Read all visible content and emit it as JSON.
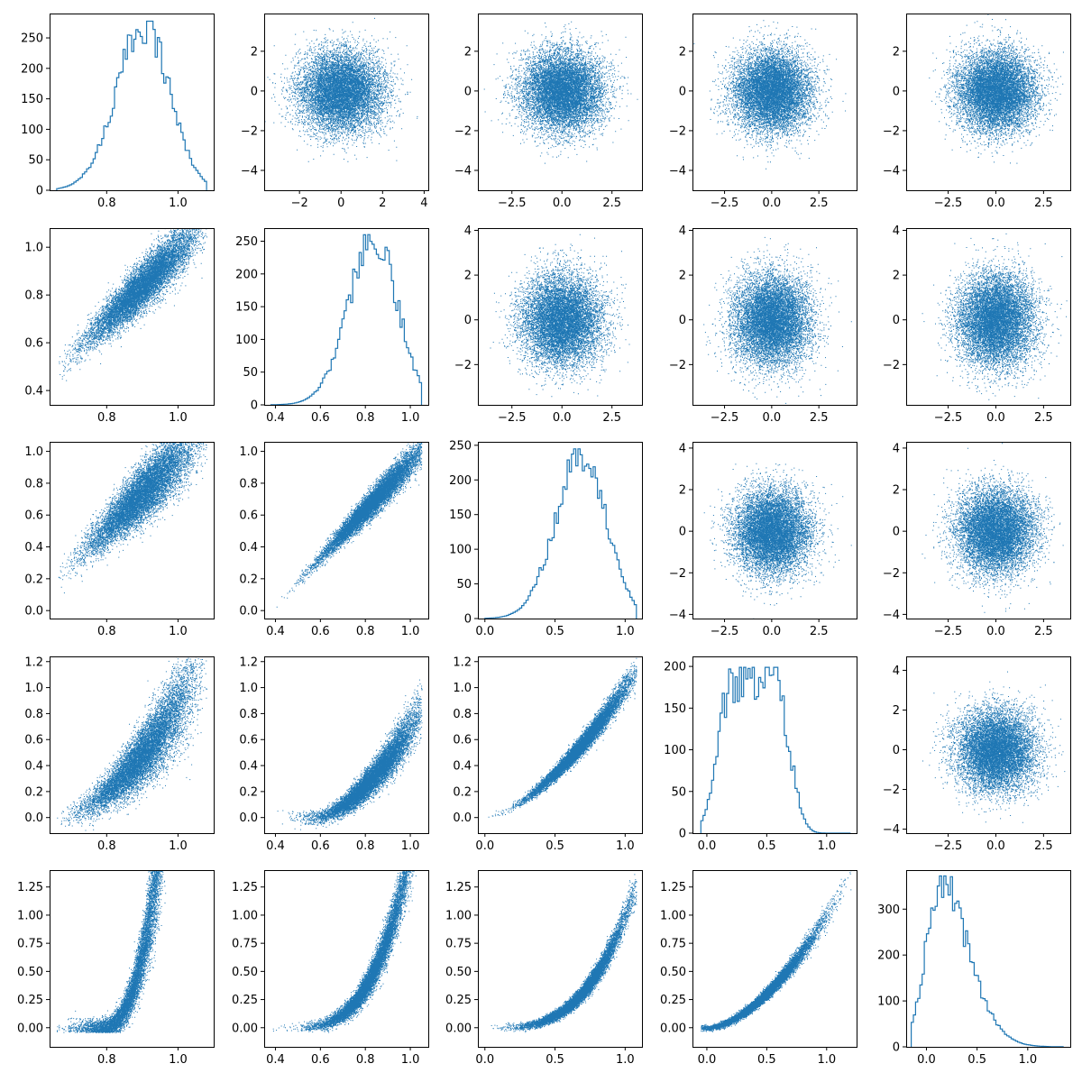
{
  "figure": {
    "background": "#ffffff",
    "accent": "#1f77b4"
  },
  "chart_data": [
    {
      "type": "histogram",
      "row": 0,
      "col": 0,
      "xlim": [
        0.64,
        1.1
      ],
      "ylim": [
        0,
        290
      ],
      "xticks": [
        0.8,
        1.0
      ],
      "xtick_labels": [
        "0.8",
        "1.0"
      ],
      "yticks": [
        0,
        50,
        100,
        150,
        200,
        250
      ],
      "ytick_labels": [
        "0",
        "50",
        "100",
        "150",
        "200",
        "250"
      ],
      "bin_range": [
        0.66,
        1.08
      ],
      "bin_count": 70,
      "mean": 0.9,
      "sd": 0.075,
      "skew": -0.9,
      "peak": 272,
      "jitter": 0.12,
      "color": "#1f77b4"
    },
    {
      "type": "scatter",
      "row": 0,
      "col": 1,
      "xlim": [
        -3.7,
        4.2
      ],
      "ylim": [
        -5.0,
        3.9
      ],
      "xticks": [
        -2,
        0,
        2,
        4
      ],
      "xtick_labels": [
        "−2",
        "0",
        "2",
        "4"
      ],
      "yticks": [
        -4,
        -2,
        0,
        2
      ],
      "ytick_labels": [
        "−4",
        "−2",
        "0",
        "2"
      ],
      "n": 10000,
      "x_mean": 0,
      "x_sd": 1,
      "rel": "normal",
      "color": "#1f77b4"
    },
    {
      "type": "scatter",
      "row": 0,
      "col": 2,
      "xlim": [
        -4.2,
        4.0
      ],
      "ylim": [
        -5.0,
        3.9
      ],
      "xticks": [
        -2.5,
        0.0,
        2.5
      ],
      "xtick_labels": [
        "−2.5",
        "0.0",
        "2.5"
      ],
      "yticks": [
        -4,
        -2,
        0,
        2
      ],
      "ytick_labels": [
        "−4",
        "−2",
        "0",
        "2"
      ],
      "n": 10000,
      "x_mean": 0,
      "x_sd": 1,
      "rel": "normal",
      "color": "#1f77b4"
    },
    {
      "type": "scatter",
      "row": 0,
      "col": 3,
      "xlim": [
        -4.2,
        4.5
      ],
      "ylim": [
        -5.0,
        3.9
      ],
      "xticks": [
        -2.5,
        0.0,
        2.5
      ],
      "xtick_labels": [
        "−2.5",
        "0.0",
        "2.5"
      ],
      "yticks": [
        -4,
        -2,
        0,
        2
      ],
      "ytick_labels": [
        "−4",
        "−2",
        "0",
        "2"
      ],
      "n": 10000,
      "x_mean": 0,
      "x_sd": 1,
      "rel": "normal",
      "color": "#1f77b4"
    },
    {
      "type": "scatter",
      "row": 0,
      "col": 4,
      "xlim": [
        -4.7,
        3.9
      ],
      "ylim": [
        -5.0,
        3.9
      ],
      "xticks": [
        -2.5,
        0.0,
        2.5
      ],
      "xtick_labels": [
        "−2.5",
        "0.0",
        "2.5"
      ],
      "yticks": [
        -4,
        -2,
        0,
        2
      ],
      "ytick_labels": [
        "−4",
        "−2",
        "0",
        "2"
      ],
      "n": 10000,
      "x_mean": 0,
      "x_sd": 1,
      "rel": "normal",
      "color": "#1f77b4"
    },
    {
      "type": "scatter",
      "row": 1,
      "col": 0,
      "xlim": [
        0.64,
        1.1
      ],
      "ylim": [
        0.34,
        1.08
      ],
      "xticks": [
        0.8,
        1.0
      ],
      "xtick_labels": [
        "0.8",
        "1.0"
      ],
      "yticks": [
        0.4,
        0.6,
        0.8,
        1.0
      ],
      "ytick_labels": [
        "0.4",
        "0.6",
        "0.8",
        "1.0"
      ],
      "n": 10000,
      "x_mean": 0.9,
      "x_sd": 0.075,
      "x_skew": -0.9,
      "x_range": [
        0.66,
        1.08
      ],
      "rel": "curve",
      "y_slope": 1.45,
      "y_pivot": 0.9,
      "y_offset": 0.84,
      "y_power": 1,
      "y_noise": 0.035,
      "color": "#1f77b4"
    },
    {
      "type": "histogram",
      "row": 1,
      "col": 1,
      "xlim": [
        0.35,
        1.08
      ],
      "ylim": [
        0,
        270
      ],
      "xticks": [
        0.4,
        0.6,
        0.8,
        1.0
      ],
      "xtick_labels": [
        "0.4",
        "0.6",
        "0.8",
        "1.0"
      ],
      "yticks": [
        0,
        50,
        100,
        150,
        200,
        250
      ],
      "ytick_labels": [
        "0",
        "50",
        "100",
        "150",
        "200",
        "250"
      ],
      "bin_range": [
        0.38,
        1.05
      ],
      "bin_count": 70,
      "mean": 0.83,
      "sd": 0.11,
      "skew": -0.9,
      "peak": 255,
      "jitter": 0.12,
      "color": "#1f77b4"
    },
    {
      "type": "scatter",
      "row": 1,
      "col": 2,
      "xlim": [
        -4.2,
        4.0
      ],
      "ylim": [
        -3.8,
        4.1
      ],
      "xticks": [
        -2.5,
        0.0,
        2.5
      ],
      "xtick_labels": [
        "−2.5",
        "0.0",
        "2.5"
      ],
      "yticks": [
        -2,
        0,
        2,
        4
      ],
      "ytick_labels": [
        "−2",
        "0",
        "2",
        "4"
      ],
      "n": 10000,
      "x_mean": 0,
      "x_sd": 1,
      "rel": "normal",
      "color": "#1f77b4"
    },
    {
      "type": "scatter",
      "row": 1,
      "col": 3,
      "xlim": [
        -4.2,
        4.5
      ],
      "ylim": [
        -3.8,
        4.1
      ],
      "xticks": [
        -2.5,
        0.0,
        2.5
      ],
      "xtick_labels": [
        "−2.5",
        "0.0",
        "2.5"
      ],
      "yticks": [
        -2,
        0,
        2,
        4
      ],
      "ytick_labels": [
        "−2",
        "0",
        "2",
        "4"
      ],
      "n": 10000,
      "x_mean": 0,
      "x_sd": 1,
      "rel": "normal",
      "color": "#1f77b4"
    },
    {
      "type": "scatter",
      "row": 1,
      "col": 4,
      "xlim": [
        -4.7,
        3.9
      ],
      "ylim": [
        -3.8,
        4.1
      ],
      "xticks": [
        -2.5,
        0.0,
        2.5
      ],
      "xtick_labels": [
        "−2.5",
        "0.0",
        "2.5"
      ],
      "yticks": [
        -2,
        0,
        2,
        4
      ],
      "ytick_labels": [
        "−2",
        "0",
        "2",
        "4"
      ],
      "n": 10000,
      "x_mean": 0,
      "x_sd": 1,
      "rel": "normal",
      "color": "#1f77b4"
    },
    {
      "type": "scatter",
      "row": 2,
      "col": 0,
      "xlim": [
        0.64,
        1.1
      ],
      "ylim": [
        -0.05,
        1.06
      ],
      "xticks": [
        0.8,
        1.0
      ],
      "xtick_labels": [
        "0.8",
        "1.0"
      ],
      "yticks": [
        0.0,
        0.2,
        0.4,
        0.6,
        0.8,
        1.0
      ],
      "ytick_labels": [
        "0.0",
        "0.2",
        "0.4",
        "0.6",
        "0.8",
        "1.0"
      ],
      "n": 10000,
      "x_mean": 0.9,
      "x_sd": 0.075,
      "x_skew": -0.9,
      "x_range": [
        0.66,
        1.08
      ],
      "rel": "curve",
      "y_slope": 2.2,
      "y_pivot": 0.9,
      "y_offset": 0.74,
      "y_power": 1,
      "y_noise": 0.07,
      "color": "#1f77b4"
    },
    {
      "type": "scatter",
      "row": 2,
      "col": 1,
      "xlim": [
        0.35,
        1.08
      ],
      "ylim": [
        -0.05,
        1.06
      ],
      "xticks": [
        0.4,
        0.6,
        0.8,
        1.0
      ],
      "xtick_labels": [
        "0.4",
        "0.6",
        "0.8",
        "1.0"
      ],
      "yticks": [
        0.0,
        0.2,
        0.4,
        0.6,
        0.8,
        1.0
      ],
      "ytick_labels": [
        "0.0",
        "0.2",
        "0.4",
        "0.6",
        "0.8",
        "1.0"
      ],
      "n": 10000,
      "x_mean": 0.83,
      "x_sd": 0.11,
      "x_skew": -0.9,
      "x_range": [
        0.38,
        1.05
      ],
      "rel": "curve",
      "y_slope": 1.5,
      "y_pivot": 0.83,
      "y_offset": 0.68,
      "y_power": 1,
      "y_noise": 0.035,
      "color": "#1f77b4"
    },
    {
      "type": "histogram",
      "row": 2,
      "col": 2,
      "xlim": [
        -0.05,
        1.12
      ],
      "ylim": [
        0,
        255
      ],
      "xticks": [
        0.0,
        0.5,
        1.0
      ],
      "xtick_labels": [
        "0.0",
        "0.5",
        "1.0"
      ],
      "yticks": [
        0,
        50,
        100,
        150,
        200,
        250
      ],
      "ytick_labels": [
        "0",
        "50",
        "100",
        "150",
        "200",
        "250"
      ],
      "bin_range": [
        0.0,
        1.08
      ],
      "bin_count": 70,
      "mean": 0.68,
      "sd": 0.18,
      "skew": -0.8,
      "peak": 240,
      "jitter": 0.12,
      "color": "#1f77b4"
    },
    {
      "type": "scatter",
      "row": 2,
      "col": 3,
      "xlim": [
        -4.2,
        4.5
      ],
      "ylim": [
        -4.2,
        4.3
      ],
      "xticks": [
        -2.5,
        0.0,
        2.5
      ],
      "xtick_labels": [
        "−2.5",
        "0.0",
        "2.5"
      ],
      "yticks": [
        -4,
        -2,
        0,
        2,
        4
      ],
      "ytick_labels": [
        "−4",
        "−2",
        "0",
        "2",
        "4"
      ],
      "n": 10000,
      "x_mean": 0,
      "x_sd": 1,
      "rel": "normal",
      "color": "#1f77b4"
    },
    {
      "type": "scatter",
      "row": 2,
      "col": 4,
      "xlim": [
        -4.7,
        3.9
      ],
      "ylim": [
        -4.2,
        4.3
      ],
      "xticks": [
        -2.5,
        0.0,
        2.5
      ],
      "xtick_labels": [
        "−2.5",
        "0.0",
        "2.5"
      ],
      "yticks": [
        -4,
        -2,
        0,
        2,
        4
      ],
      "ytick_labels": [
        "−4",
        "−2",
        "0",
        "2",
        "4"
      ],
      "n": 10000,
      "x_mean": 0,
      "x_sd": 1,
      "rel": "normal",
      "color": "#1f77b4"
    },
    {
      "type": "scatter",
      "row": 3,
      "col": 0,
      "xlim": [
        0.64,
        1.1
      ],
      "ylim": [
        -0.12,
        1.24
      ],
      "xticks": [
        0.8,
        1.0
      ],
      "xtick_labels": [
        "0.8",
        "1.0"
      ],
      "yticks": [
        0.0,
        0.2,
        0.4,
        0.6,
        0.8,
        1.0,
        1.2
      ],
      "ytick_labels": [
        "0.0",
        "0.2",
        "0.4",
        "0.6",
        "0.8",
        "1.0",
        "1.2"
      ],
      "n": 10000,
      "x_mean": 0.9,
      "x_sd": 0.075,
      "x_skew": -0.9,
      "x_range": [
        0.66,
        1.08
      ],
      "rel": "curve",
      "y_slope": 2.6,
      "y_pivot": 0.9,
      "y_offset": 0.48,
      "y_power": 1.7,
      "y_noise": 0.12,
      "color": "#1f77b4"
    },
    {
      "type": "scatter",
      "row": 3,
      "col": 1,
      "xlim": [
        0.35,
        1.08
      ],
      "ylim": [
        -0.12,
        1.24
      ],
      "xticks": [
        0.4,
        0.6,
        0.8,
        1.0
      ],
      "xtick_labels": [
        "0.4",
        "0.6",
        "0.8",
        "1.0"
      ],
      "yticks": [
        0.0,
        0.2,
        0.4,
        0.6,
        0.8,
        1.0,
        1.2
      ],
      "ytick_labels": [
        "0.0",
        "0.2",
        "0.4",
        "0.6",
        "0.8",
        "1.0",
        "1.2"
      ],
      "n": 10000,
      "x_mean": 0.83,
      "x_sd": 0.11,
      "x_skew": -0.9,
      "x_range": [
        0.38,
        1.05
      ],
      "rel": "curve",
      "y_slope": 1.7,
      "y_pivot": 0.83,
      "y_offset": 0.46,
      "y_power": 1.6,
      "y_noise": 0.08,
      "color": "#1f77b4"
    },
    {
      "type": "scatter",
      "row": 3,
      "col": 2,
      "xlim": [
        -0.05,
        1.12
      ],
      "ylim": [
        -0.12,
        1.24
      ],
      "xticks": [
        0.0,
        0.5,
        1.0
      ],
      "xtick_labels": [
        "0.0",
        "0.5",
        "1.0"
      ],
      "yticks": [
        0.0,
        0.2,
        0.4,
        0.6,
        0.8,
        1.0,
        1.2
      ],
      "ytick_labels": [
        "0.0",
        "0.2",
        "0.4",
        "0.6",
        "0.8",
        "1.0",
        "1.2"
      ],
      "n": 10000,
      "x_mean": 0.68,
      "x_sd": 0.18,
      "x_skew": -0.8,
      "x_range": [
        0.02,
        1.08
      ],
      "rel": "curve",
      "y_slope": 1.0,
      "y_pivot": 0.0,
      "y_offset": 0.0,
      "y_power": 1.55,
      "y_noise": 0.035,
      "color": "#1f77b4"
    },
    {
      "type": "histogram",
      "row": 3,
      "col": 3,
      "xlim": [
        -0.12,
        1.25
      ],
      "ylim": [
        0,
        212
      ],
      "xticks": [
        0.0,
        0.5,
        1.0
      ],
      "xtick_labels": [
        "0.0",
        "0.5",
        "1.0"
      ],
      "yticks": [
        0,
        50,
        100,
        150,
        200
      ],
      "ytick_labels": [
        "0",
        "50",
        "100",
        "150",
        "200"
      ],
      "bin_range": [
        -0.05,
        1.2
      ],
      "bin_count": 70,
      "mean": 0.46,
      "sd": 0.24,
      "skew": 0.1,
      "peak": 195,
      "flat": true,
      "jitter": 0.18,
      "color": "#1f77b4"
    },
    {
      "type": "scatter",
      "row": 3,
      "col": 4,
      "xlim": [
        -4.7,
        3.9
      ],
      "ylim": [
        -4.2,
        4.7
      ],
      "xticks": [
        -2.5,
        0.0,
        2.5
      ],
      "xtick_labels": [
        "−2.5",
        "0.0",
        "2.5"
      ],
      "yticks": [
        -4,
        -2,
        0,
        2,
        4
      ],
      "ytick_labels": [
        "−4",
        "−2",
        "0",
        "2",
        "4"
      ],
      "n": 10000,
      "x_mean": 0,
      "x_sd": 1,
      "rel": "normal",
      "color": "#1f77b4"
    },
    {
      "type": "scatter",
      "row": 4,
      "col": 0,
      "xlim": [
        0.64,
        1.1
      ],
      "ylim": [
        -0.17,
        1.4
      ],
      "xticks": [
        0.8,
        1.0
      ],
      "xtick_labels": [
        "0.8",
        "1.0"
      ],
      "yticks": [
        0.0,
        0.25,
        0.5,
        0.75,
        1.0,
        1.25
      ],
      "ytick_labels": [
        "0.00",
        "0.25",
        "0.50",
        "0.75",
        "1.00",
        "1.25"
      ],
      "n": 10000,
      "x_mean": 0.9,
      "x_sd": 0.075,
      "x_skew": -0.9,
      "x_range": [
        0.66,
        1.08
      ],
      "rel": "curve",
      "y_slope": 3.2,
      "y_pivot": 0.78,
      "y_offset": 0.0,
      "y_power": 2.6,
      "y_noise": 0.12,
      "y_floor": 0.0,
      "color": "#1f77b4"
    },
    {
      "type": "scatter",
      "row": 4,
      "col": 1,
      "xlim": [
        0.35,
        1.08
      ],
      "ylim": [
        -0.17,
        1.4
      ],
      "xticks": [
        0.4,
        0.6,
        0.8,
        1.0
      ],
      "xtick_labels": [
        "0.4",
        "0.6",
        "0.8",
        "1.0"
      ],
      "yticks": [
        0.0,
        0.25,
        0.5,
        0.75,
        1.0,
        1.25
      ],
      "ytick_labels": [
        "0.00",
        "0.25",
        "0.50",
        "0.75",
        "1.00",
        "1.25"
      ],
      "n": 10000,
      "x_mean": 0.83,
      "x_sd": 0.11,
      "x_skew": -0.9,
      "x_range": [
        0.38,
        1.05
      ],
      "rel": "curve",
      "y_slope": 1.55,
      "y_pivot": 0.45,
      "y_offset": 0.0,
      "y_power": 3.2,
      "y_noise": 0.07,
      "y_floor": 0.0,
      "color": "#1f77b4"
    },
    {
      "type": "scatter",
      "row": 4,
      "col": 2,
      "xlim": [
        -0.05,
        1.12
      ],
      "ylim": [
        -0.17,
        1.4
      ],
      "xticks": [
        0.0,
        0.5,
        1.0
      ],
      "xtick_labels": [
        "0.0",
        "0.5",
        "1.0"
      ],
      "yticks": [
        0.0,
        0.25,
        0.5,
        0.75,
        1.0,
        1.25
      ],
      "ytick_labels": [
        "0.00",
        "0.25",
        "0.50",
        "0.75",
        "1.00",
        "1.25"
      ],
      "n": 10000,
      "x_mean": 0.68,
      "x_sd": 0.18,
      "x_skew": -0.8,
      "x_range": [
        0.02,
        1.08
      ],
      "rel": "curve",
      "y_slope": 1.0,
      "y_pivot": 0.0,
      "y_offset": 0.0,
      "y_power": 3.2,
      "y_noise": 0.045,
      "color": "#1f77b4"
    },
    {
      "type": "scatter",
      "row": 4,
      "col": 3,
      "xlim": [
        -0.12,
        1.25
      ],
      "ylim": [
        -0.17,
        1.4
      ],
      "xticks": [
        0.0,
        0.5,
        1.0
      ],
      "xtick_labels": [
        "0.0",
        "0.5",
        "1.0"
      ],
      "yticks": [
        0.0,
        0.25,
        0.5,
        0.75,
        1.0,
        1.25
      ],
      "ytick_labels": [
        "0.00",
        "0.25",
        "0.50",
        "0.75",
        "1.00",
        "1.25"
      ],
      "n": 10000,
      "x_mean": 0.46,
      "x_sd": 0.24,
      "x_skew": 0.1,
      "x_range": [
        -0.05,
        1.2
      ],
      "rel": "curve",
      "y_slope": 1.0,
      "y_pivot": 0.0,
      "y_offset": 0.0,
      "y_power": 1.7,
      "y_noise": 0.035,
      "y_floor": 0.0,
      "color": "#1f77b4"
    },
    {
      "type": "histogram",
      "row": 4,
      "col": 4,
      "xlim": [
        -0.2,
        1.42
      ],
      "ylim": [
        0,
        385
      ],
      "xticks": [
        0.0,
        0.5,
        1.0
      ],
      "xtick_labels": [
        "0.0",
        "0.5",
        "1.0"
      ],
      "yticks": [
        0,
        100,
        200,
        300
      ],
      "ytick_labels": [
        "0",
        "100",
        "200",
        "300"
      ],
      "bin_range": [
        -0.15,
        1.35
      ],
      "bin_count": 70,
      "mean": 0.25,
      "sd": 0.22,
      "skew": 2.5,
      "peak": 365,
      "jitter": 0.12,
      "color": "#1f77b4"
    }
  ]
}
